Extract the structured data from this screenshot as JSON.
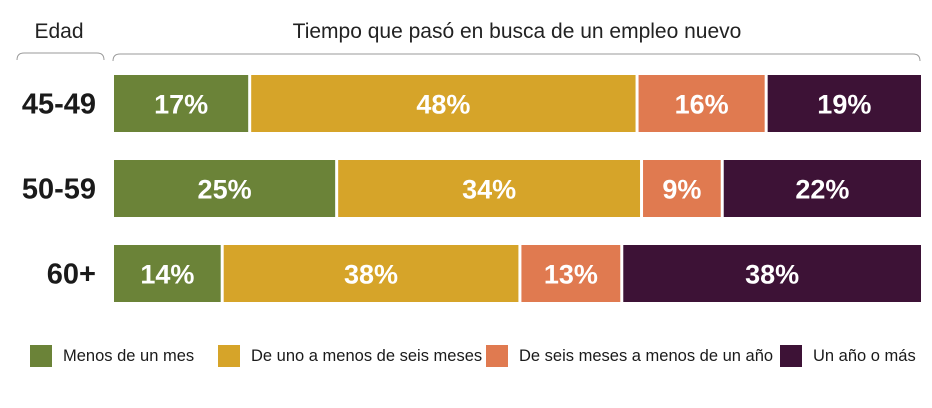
{
  "header": {
    "age_label": "Edad",
    "title": "Tiempo que pasó en busca de un empleo nuevo"
  },
  "chart_data": {
    "type": "bar",
    "orientation": "horizontal",
    "stacked": true,
    "normalized": true,
    "categories": [
      "45-49",
      "50-59",
      "60+"
    ],
    "series": [
      {
        "name": "Menos de un mes",
        "color": "#6b8338",
        "values": [
          17,
          25,
          14
        ]
      },
      {
        "name": "De uno a menos de seis meses",
        "color": "#d6a429",
        "values": [
          48,
          34,
          38
        ]
      },
      {
        "name": "De seis meses a menos de un año",
        "color": "#e07a50",
        "values": [
          16,
          9,
          13
        ]
      },
      {
        "name": "Un año o más",
        "color": "#3d1236",
        "values": [
          19,
          22,
          38
        ]
      }
    ],
    "value_suffix": "%",
    "legend_position": "bottom",
    "grid": false
  }
}
